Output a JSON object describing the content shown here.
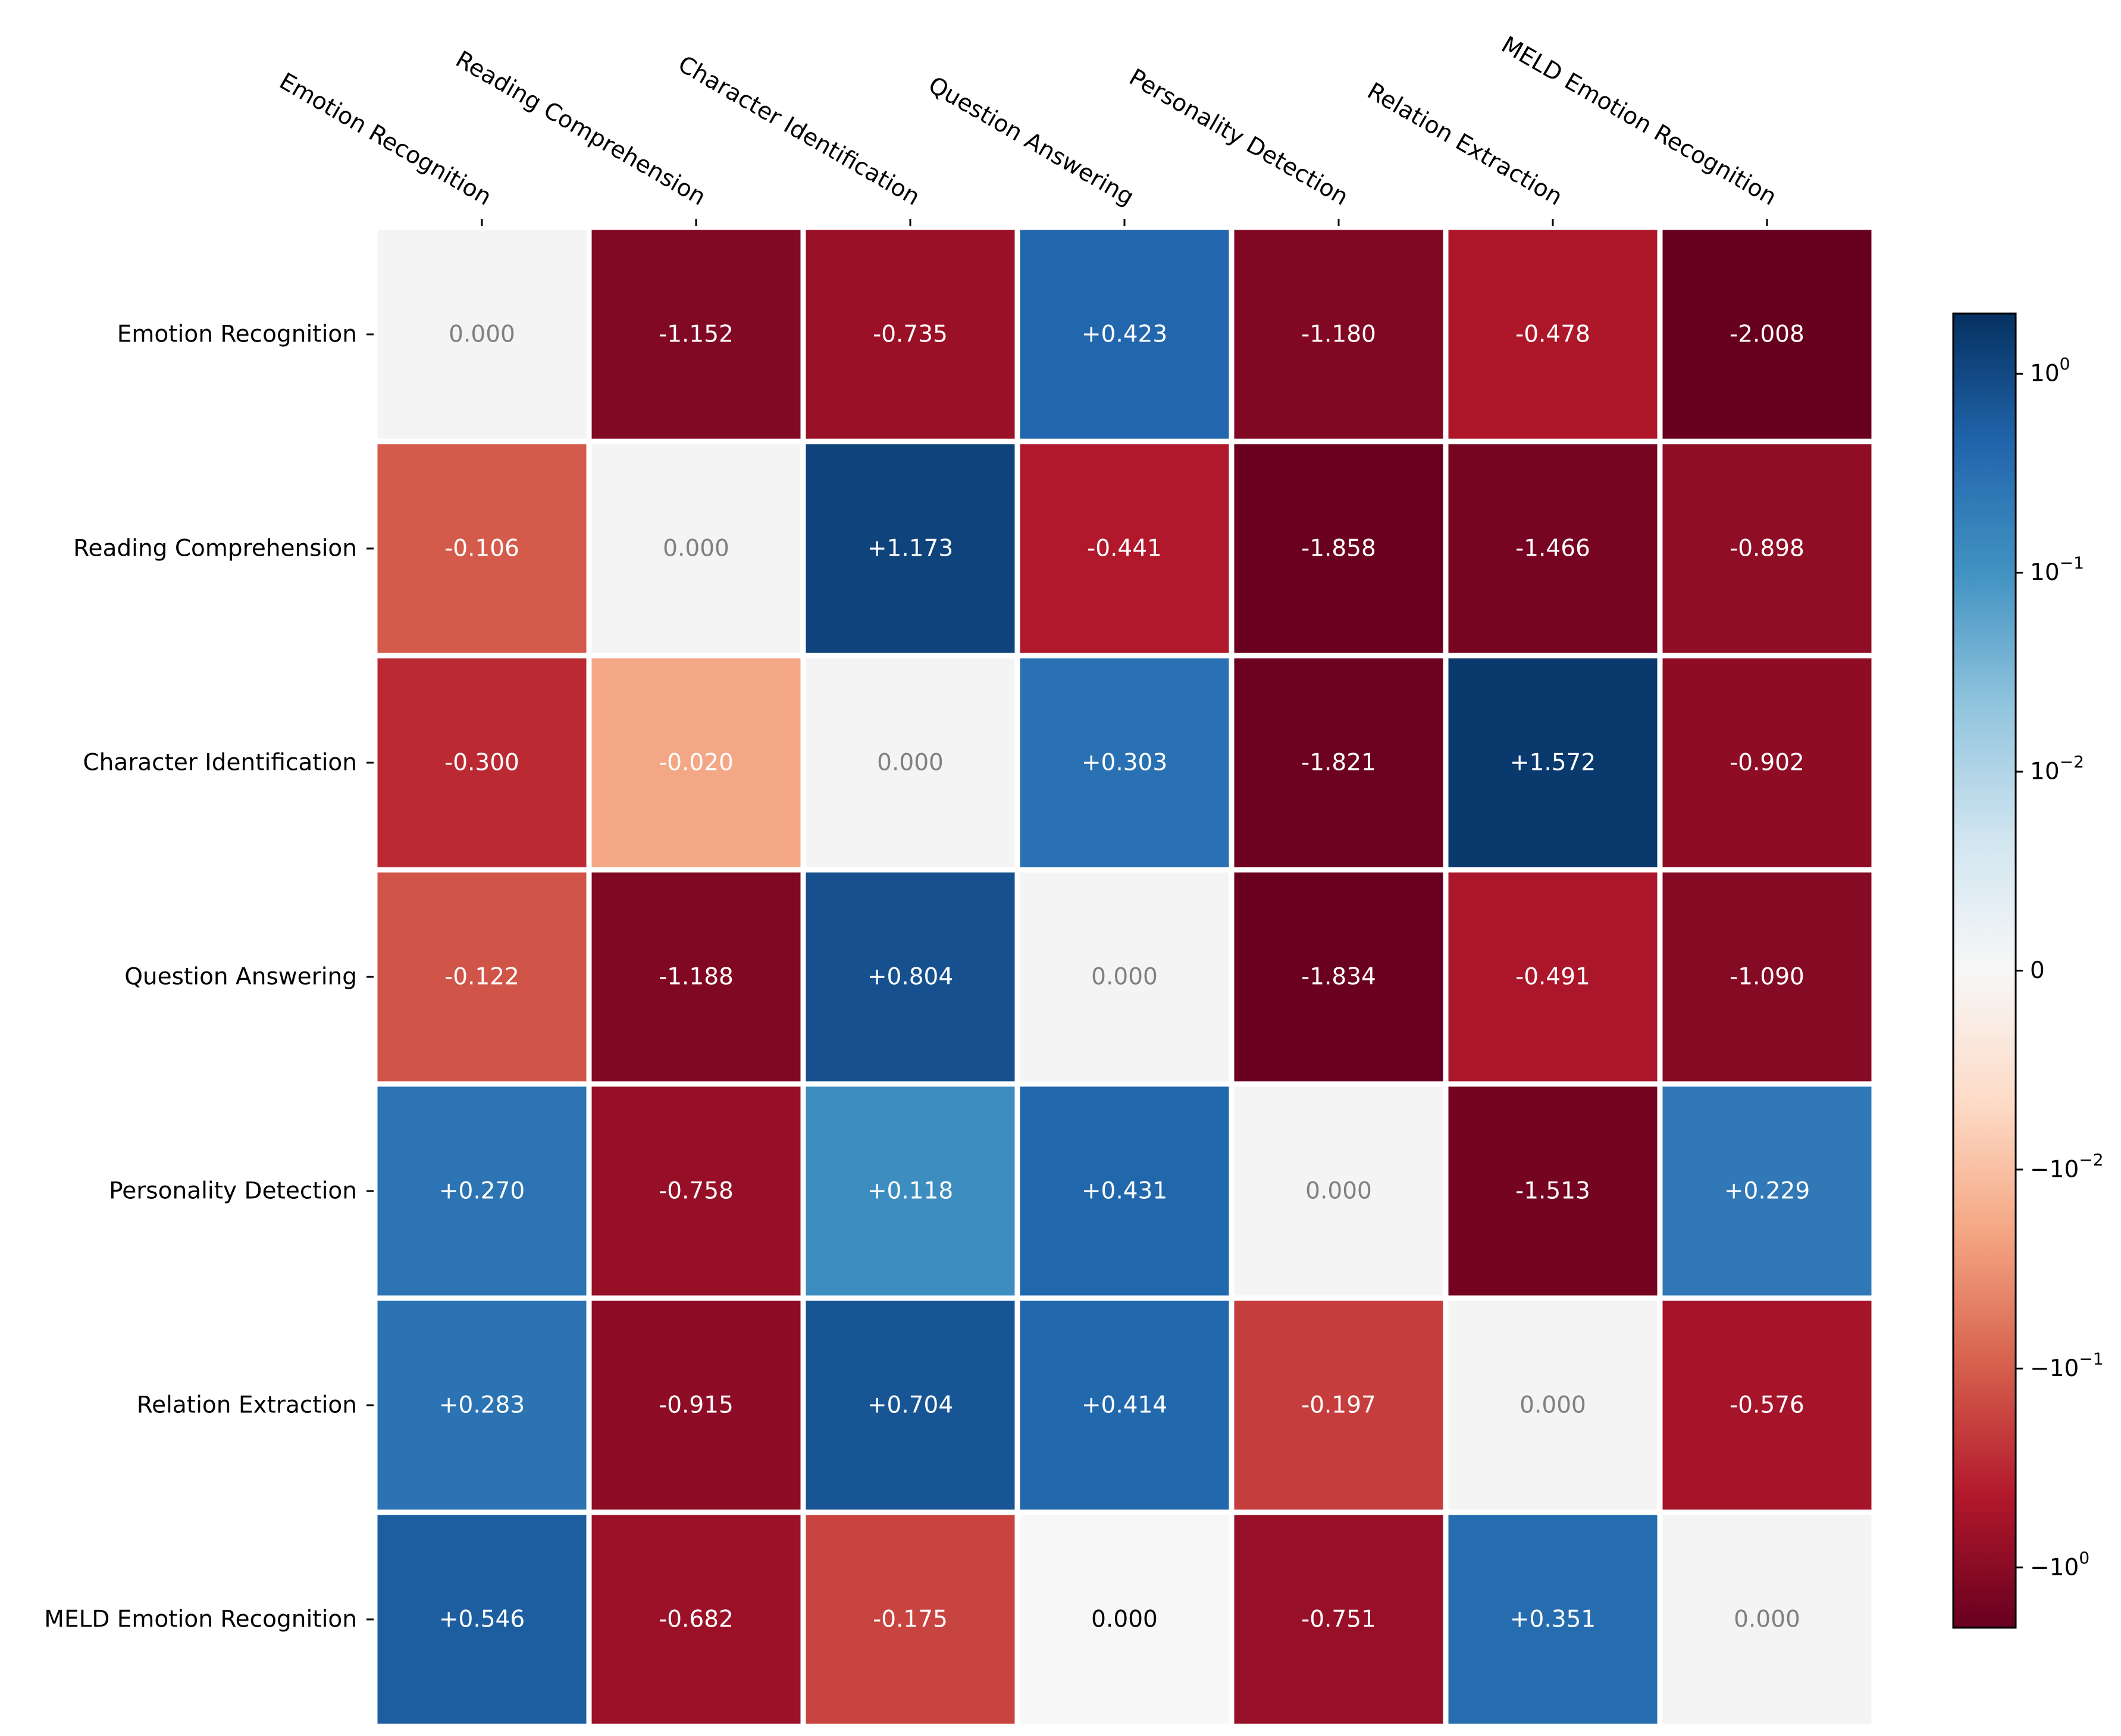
{
  "chart_data": {
    "type": "heatmap",
    "title": "",
    "xlabel": "",
    "ylabel": "",
    "columns": [
      "Emotion Recognition",
      "Reading Comprehension",
      "Character Identification",
      "Question Answering",
      "Personality Detection",
      "Relation Extraction",
      "MELD Emotion Recognition"
    ],
    "rows": [
      "Emotion Recognition",
      "Reading Comprehension",
      "Character Identification",
      "Question Answering",
      "Personality Detection",
      "Relation Extraction",
      "MELD Emotion Recognition"
    ],
    "values": [
      [
        0.0,
        -1.152,
        -0.735,
        0.423,
        -1.18,
        -0.478,
        -2.008
      ],
      [
        -0.106,
        0.0,
        1.173,
        -0.441,
        -1.858,
        -1.466,
        -0.898
      ],
      [
        -0.3,
        -0.02,
        0.0,
        0.303,
        -1.821,
        1.572,
        -0.902
      ],
      [
        -0.122,
        -1.188,
        0.804,
        0.0,
        -1.834,
        -0.491,
        -1.09
      ],
      [
        0.27,
        -0.758,
        0.118,
        0.431,
        0.0,
        -1.513,
        0.229
      ],
      [
        0.283,
        -0.915,
        0.704,
        0.414,
        -0.197,
        0.0,
        -0.576
      ],
      [
        0.546,
        -0.682,
        -0.175,
        0.0,
        -0.751,
        0.351,
        0.0
      ]
    ],
    "cell_labels": [
      [
        "0.000",
        "-1.152",
        "-0.735",
        "+0.423",
        "-1.180",
        "-0.478",
        "-2.008"
      ],
      [
        "-0.106",
        "0.000",
        "+1.173",
        "-0.441",
        "-1.858",
        "-1.466",
        "-0.898"
      ],
      [
        "-0.300",
        "-0.020",
        "0.000",
        "+0.303",
        "-1.821",
        "+1.572",
        "-0.902"
      ],
      [
        "-0.122",
        "-1.188",
        "+0.804",
        "0.000",
        "-1.834",
        "-0.491",
        "-1.090"
      ],
      [
        "+0.270",
        "-0.758",
        "+0.118",
        "+0.431",
        "0.000",
        "-1.513",
        "+0.229"
      ],
      [
        "+0.283",
        "-0.915",
        "+0.704",
        "+0.414",
        "-0.197",
        "0.000",
        "-0.576"
      ],
      [
        "+0.546",
        "-0.682",
        "-0.175",
        "0.000",
        "-0.751",
        "+0.351",
        "0.000"
      ]
    ],
    "colorbar": {
      "scale": "symlog",
      "linthresh": 0.01,
      "range": [
        -2.008,
        2.008
      ],
      "ticks": [
        1,
        0.1,
        0.01,
        0,
        -0.01,
        -0.1,
        -1
      ],
      "colormap": "RdBu"
    },
    "diagonal_fill": "#f4f4f4",
    "diagonal_text_color": "#808080"
  }
}
